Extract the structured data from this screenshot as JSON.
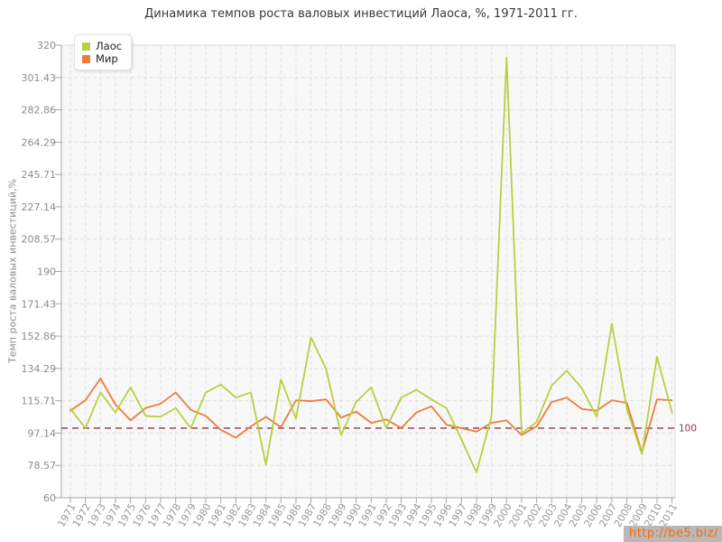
{
  "title": "Динамика темпов роста валовых инвестиций Лаоса, %, 1971-2011 гг.",
  "y_axis_title": "Темп роста валовых инвестиций,%",
  "watermark": "http://be5.biz/",
  "reference_line": {
    "value": 100,
    "label": "100",
    "color": "#993344"
  },
  "colors": {
    "laos": "#b8d03e",
    "world": "#ec7c3c",
    "grid": "#e1e1e1",
    "axis": "#a6a6a6",
    "plot_bg": "#f8f8f8",
    "y_labels": "#8c8c8c",
    "x_labels": "#999999",
    "title": "#3a3a3a",
    "ref": "#993344",
    "watermark_text": "#ff6a00",
    "watermark_bg": "#b9b9b9"
  },
  "chart_data": {
    "type": "line",
    "title": "Динамика темпов роста валовых инвестиций Лаоса, %, 1971-2011 гг.",
    "xlabel": "",
    "ylabel": "Темп роста валовых инвестиций,%",
    "ylim": [
      60,
      320
    ],
    "yticks": [
      "320",
      "301.43",
      "282.86",
      "264.29",
      "245.71",
      "227.14",
      "208.57",
      "190",
      "171.43",
      "152.86",
      "134.29",
      "115.71",
      "97.14",
      "78.57",
      "60"
    ],
    "grid": true,
    "legend_position": "top-left",
    "x": [
      1971,
      1972,
      1973,
      1974,
      1975,
      1976,
      1977,
      1978,
      1979,
      1980,
      1981,
      1982,
      1983,
      1984,
      1985,
      1986,
      1987,
      1988,
      1989,
      1990,
      1991,
      1992,
      1993,
      1994,
      1995,
      1996,
      1997,
      1998,
      1999,
      2000,
      2001,
      2002,
      2003,
      2004,
      2005,
      2006,
      2007,
      2008,
      2009,
      2010,
      2011
    ],
    "series": [
      {
        "name": "Лаос",
        "color": "#b8d03e",
        "values": [
          111,
          100,
          120.5,
          109,
          123.5,
          107,
          106.5,
          111.5,
          100,
          120.5,
          125,
          117.5,
          120.5,
          79,
          128,
          105.5,
          152,
          134,
          96,
          115,
          123.5,
          100,
          117.5,
          122,
          116.5,
          111.5,
          93.5,
          74.5,
          107,
          313,
          97,
          103.5,
          124.5,
          133,
          123,
          106.5,
          160,
          111,
          85,
          141,
          109
        ]
      },
      {
        "name": "Мир",
        "color": "#ec7c3c",
        "values": [
          110,
          116,
          128.5,
          113.5,
          104.5,
          111.5,
          114,
          120.5,
          110.5,
          107,
          99,
          94.5,
          101,
          106.5,
          100.5,
          116,
          115.5,
          116.5,
          106,
          109.5,
          103,
          105,
          100,
          109,
          112.5,
          102,
          100,
          98,
          103,
          104.5,
          96,
          101,
          115,
          117.5,
          111,
          110,
          116,
          114.5,
          86,
          116.5,
          116
        ]
      }
    ]
  }
}
